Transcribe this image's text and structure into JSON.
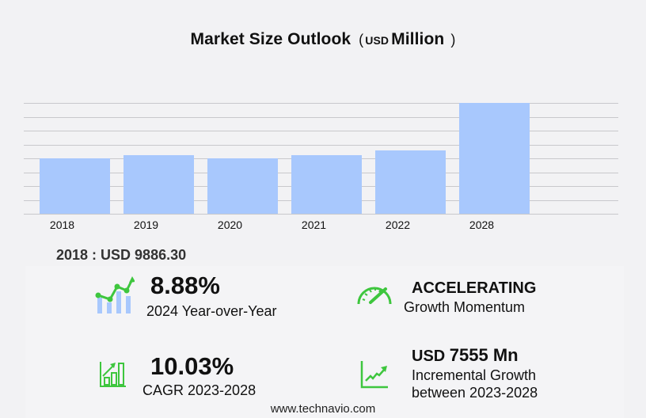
{
  "title": {
    "main": "Market Size Outlook",
    "paren_open": "(",
    "unit_prefix": "USD",
    "unit": "Million",
    "paren_close": ")"
  },
  "chart_data": {
    "type": "bar",
    "title": "Market Size Outlook (USD Million)",
    "xlabel": "",
    "ylabel": "",
    "categories": [
      "2018",
      "2019",
      "2020",
      "2021",
      "2022",
      "2028"
    ],
    "values": [
      9886.3,
      10450,
      9890,
      10450,
      11327,
      19888
    ],
    "ylim": [
      0,
      19888
    ],
    "grid": true,
    "gridlines": 9,
    "bar_color": "#a8c8fd",
    "legend": null
  },
  "base_value": {
    "text": "2018 : USD  9886.30"
  },
  "kpis": {
    "yoy": {
      "value": "8.88%",
      "label": "2024 Year-over-Year",
      "icon": "growth-chart-icon"
    },
    "momentum": {
      "value": "ACCELERATING",
      "label": "Growth Momentum",
      "icon": "speedometer-icon"
    },
    "cagr": {
      "value": "10.03%",
      "label": "CAGR 2023-2028",
      "icon": "bar-growth-icon"
    },
    "incremental": {
      "prefix": "USD",
      "value": "7555 Mn",
      "label_line1": "Incremental Growth",
      "label_line2": "between 2023-2028",
      "icon": "trend-line-icon"
    }
  },
  "colors": {
    "accent_green": "#3ec63e",
    "bar_blue": "#a8c8fd",
    "background": "#f2f2f4"
  },
  "footer": {
    "url": "www.technavio.com"
  }
}
